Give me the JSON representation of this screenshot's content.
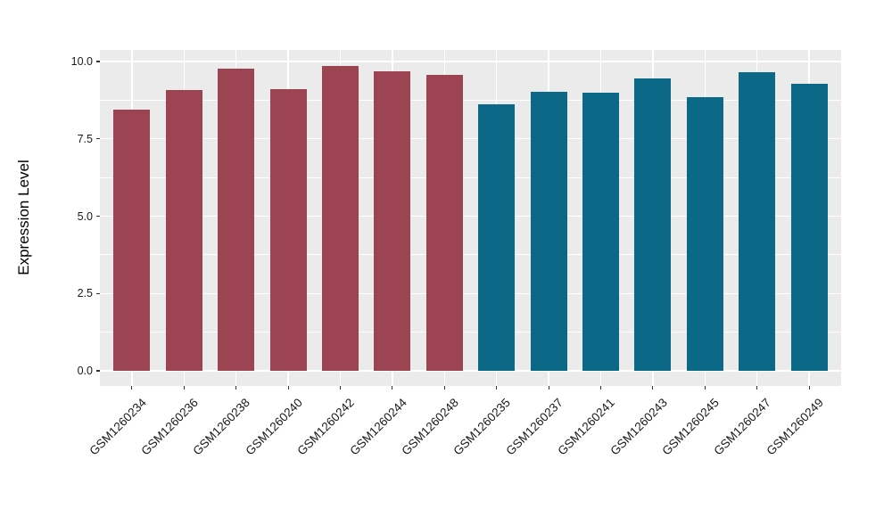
{
  "figure": {
    "background": "#ffffff"
  },
  "chart_data": {
    "type": "bar",
    "title": "",
    "xlabel": "",
    "ylabel": "Expression Level",
    "ylim": [
      0,
      10.35
    ],
    "yticks": [
      {
        "value": 0,
        "label": "0.0"
      },
      {
        "value": 2.5,
        "label": "2.5"
      },
      {
        "value": 5,
        "label": "5.0"
      },
      {
        "value": 7.5,
        "label": "7.5"
      },
      {
        "value": 10,
        "label": "10.0"
      }
    ],
    "minor_yticks": [
      1.25,
      3.75,
      6.25,
      8.75
    ],
    "grid": true,
    "legend_position": "none",
    "panel_background": "#EBEBEB",
    "grid_color": "#FFFFFF",
    "tick_color": "#333333",
    "axis_text_color": "#1a1a1a",
    "palette": {
      "left_group_color": "#9C4452",
      "right_group_color": "#0B6887"
    },
    "categories": [
      "GSM1260234",
      "GSM1260236",
      "GSM1260238",
      "GSM1260240",
      "GSM1260242",
      "GSM1260244",
      "GSM1260248",
      "GSM1260235",
      "GSM1260237",
      "GSM1260241",
      "GSM1260243",
      "GSM1260245",
      "GSM1260247",
      "GSM1260249"
    ],
    "bars": [
      {
        "label": "GSM1260234",
        "value": 8.45,
        "color": "#9C4452"
      },
      {
        "label": "GSM1260236",
        "value": 9.07,
        "color": "#9C4452"
      },
      {
        "label": "GSM1260238",
        "value": 9.76,
        "color": "#9C4452"
      },
      {
        "label": "GSM1260240",
        "value": 9.12,
        "color": "#9C4452"
      },
      {
        "label": "GSM1260242",
        "value": 9.85,
        "color": "#9C4452"
      },
      {
        "label": "GSM1260244",
        "value": 9.67,
        "color": "#9C4452"
      },
      {
        "label": "GSM1260248",
        "value": 9.58,
        "color": "#9C4452"
      },
      {
        "label": "GSM1260235",
        "value": 8.62,
        "color": "#0B6887"
      },
      {
        "label": "GSM1260237",
        "value": 9.02,
        "color": "#0B6887"
      },
      {
        "label": "GSM1260241",
        "value": 8.98,
        "color": "#0B6887"
      },
      {
        "label": "GSM1260243",
        "value": 9.45,
        "color": "#0B6887"
      },
      {
        "label": "GSM1260245",
        "value": 8.86,
        "color": "#0B6887"
      },
      {
        "label": "GSM1260247",
        "value": 9.64,
        "color": "#0B6887"
      },
      {
        "label": "GSM1260249",
        "value": 9.28,
        "color": "#0B6887"
      }
    ]
  }
}
